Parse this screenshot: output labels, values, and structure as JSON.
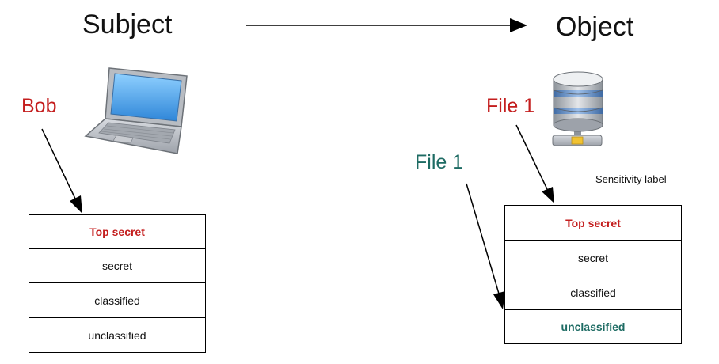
{
  "headings": {
    "subject": "Subject",
    "object": "Object"
  },
  "subject": {
    "name": "Bob",
    "name_color": "#c41e1e",
    "icon": "laptop-icon",
    "levels": [
      "Top secret",
      "secret",
      "classified",
      "unclassified"
    ],
    "highlight_index": 0
  },
  "object": {
    "file_label_top": "File 1",
    "file_label_top_color": "#c41e1e",
    "file_label_bottom": "File 1",
    "file_label_bottom_color": "#1d6b63",
    "icon": "database-server-icon",
    "caption": "Sensitivity label",
    "levels": [
      "Top secret",
      "secret",
      "classified",
      "unclassified"
    ],
    "highlight_top_index": 0,
    "highlight_bottom_index": 3
  }
}
